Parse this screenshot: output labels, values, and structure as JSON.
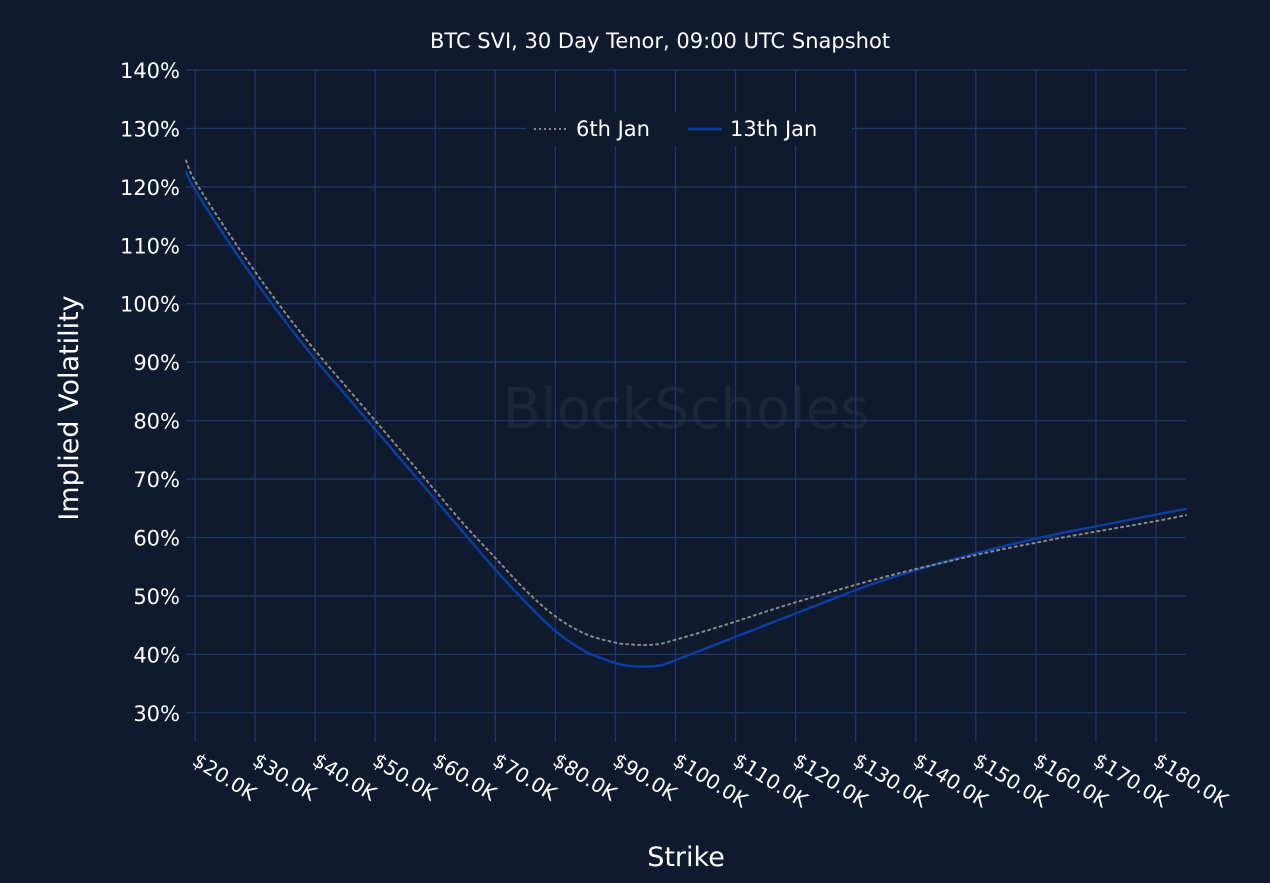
{
  "chart_data": {
    "type": "line",
    "title": "BTC SVI, 30 Day Tenor, 09:00 UTC Snapshot",
    "xlabel": "Strike",
    "ylabel": "Implied Volatility",
    "watermark": "BlockScholes",
    "xlim": [
      18500,
      185000
    ],
    "ylim": [
      25,
      140
    ],
    "x_ticks": [
      20000,
      30000,
      40000,
      50000,
      60000,
      70000,
      80000,
      90000,
      100000,
      110000,
      120000,
      130000,
      140000,
      150000,
      160000,
      170000,
      180000
    ],
    "x_tick_labels": [
      "$20.0K",
      "$30.0K",
      "$40.0K",
      "$50.0K",
      "$60.0K",
      "$70.0K",
      "$80.0K",
      "$90.0K",
      "$100.0K",
      "$110.0K",
      "$120.0K",
      "$130.0K",
      "$140.0K",
      "$150.0K",
      "$160.0K",
      "$170.0K",
      "$180.0K"
    ],
    "y_ticks": [
      30,
      40,
      50,
      60,
      70,
      80,
      90,
      100,
      110,
      120,
      130,
      140
    ],
    "y_tick_labels": [
      "30%",
      "40%",
      "50%",
      "60%",
      "70%",
      "80%",
      "90%",
      "100%",
      "110%",
      "120%",
      "130%",
      "140%"
    ],
    "grid": true,
    "legend_position": "top-center",
    "series": [
      {
        "name": "6th Jan",
        "color": "#8a8a8a",
        "style": "dotted",
        "x": [
          18500,
          20000,
          25000,
          30000,
          35000,
          40000,
          45000,
          50000,
          55000,
          60000,
          65000,
          70000,
          75000,
          80000,
          85000,
          90000,
          92500,
          95000,
          97500,
          100000,
          105000,
          110000,
          115000,
          120000,
          125000,
          130000,
          135000,
          140000,
          145000,
          150000,
          155000,
          160000,
          165000,
          170000,
          175000,
          180000,
          185000
        ],
        "y": [
          124.5,
          121,
          113,
          105.5,
          98.5,
          92,
          86,
          80,
          74,
          68,
          62,
          56.5,
          51,
          46.5,
          43.5,
          42,
          41.7,
          41.6,
          41.8,
          42.5,
          44,
          45.6,
          47.3,
          48.9,
          50.4,
          51.9,
          53.3,
          54.6,
          55.8,
          57,
          58.1,
          59.1,
          60.1,
          61,
          61.9,
          62.8,
          63.8
        ]
      },
      {
        "name": "13th Jan",
        "color": "#0a3ea3",
        "style": "solid",
        "x": [
          18500,
          20000,
          25000,
          30000,
          35000,
          40000,
          45000,
          50000,
          55000,
          60000,
          65000,
          70000,
          75000,
          80000,
          85000,
          90000,
          92500,
          95000,
          97500,
          100000,
          105000,
          110000,
          115000,
          120000,
          125000,
          130000,
          135000,
          140000,
          145000,
          150000,
          155000,
          160000,
          165000,
          170000,
          175000,
          180000,
          185000
        ],
        "y": [
          122.5,
          119.5,
          111.5,
          104,
          97,
          90.5,
          84.5,
          78.5,
          72.5,
          66.5,
          60.5,
          54.5,
          49,
          44,
          40.5,
          38.5,
          38,
          37.9,
          38.1,
          39,
          41,
          43,
          45,
          47,
          49,
          51,
          52.8,
          54.4,
          55.9,
          57.3,
          58.6,
          59.8,
          60.9,
          61.9,
          62.9,
          63.9,
          64.9
        ]
      }
    ]
  }
}
